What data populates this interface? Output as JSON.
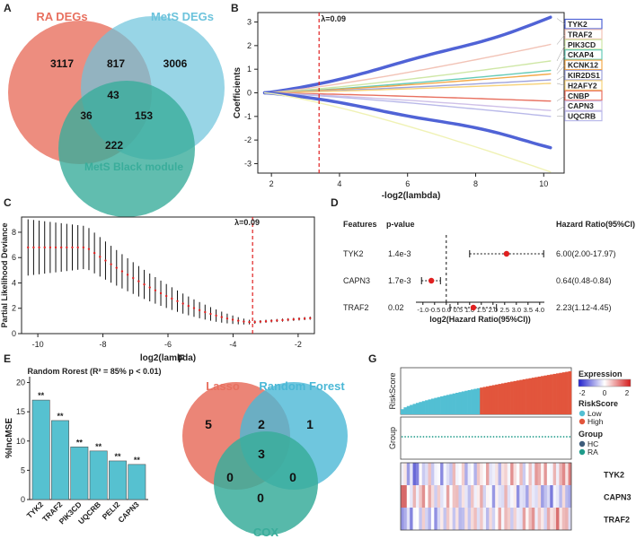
{
  "panels": {
    "A": {
      "letter": "A",
      "chart_data": {
        "type": "venn",
        "sets": [
          "RA DEGs",
          "MetS DEGs",
          "MetS Black module"
        ],
        "colors": [
          "#e8705f",
          "#6cc3dc",
          "#3aad9b"
        ],
        "regions": {
          "A_only": "3117",
          "B_only": "3006",
          "C_only": "222",
          "AB": "817",
          "AC": "36",
          "BC": "153",
          "ABC": "43"
        }
      }
    },
    "B": {
      "letter": "B",
      "chart_data": {
        "type": "line",
        "title": "",
        "xlabel": "-log2(lambda)",
        "ylabel": "Coefficients",
        "xlim": [
          1.6,
          10.6
        ],
        "ylim": [
          -3.4,
          3.4
        ],
        "xticks": [
          "2",
          "4",
          "6",
          "8",
          "10"
        ],
        "yticks": [
          "-3",
          "-2",
          "-1",
          "0",
          "1",
          "2",
          "3"
        ],
        "lambda_label": "λ=0.09",
        "lambda_x": 3.4,
        "series": [
          {
            "name": "TYK2",
            "color": "#5063d6",
            "width": 3.5,
            "end": 3.15
          },
          {
            "name": "TRAF2",
            "color": "#f2c3b6",
            "width": 1.4,
            "end": 2.05
          },
          {
            "name": "PIK3CD",
            "color": "#cfe7a6",
            "width": 1.4,
            "end": 1.35
          },
          {
            "name": "CKAP4",
            "color": "#66cbb7",
            "width": 1.4,
            "end": 0.95
          },
          {
            "name": "KCNK12",
            "color": "#f4a94b",
            "width": 1.4,
            "end": 0.8
          },
          {
            "name": "KIR2DS1",
            "color": "#9ea3dc",
            "width": 1.4,
            "end": 0.55
          },
          {
            "name": "H2AFY2",
            "color": "#f7d37a",
            "width": 1.4,
            "end": 0.4
          },
          {
            "name": "CNBP",
            "color": "#e8705f",
            "width": 1.4,
            "end": -0.35
          },
          {
            "name": "CAPN3",
            "color": "#cfc0e8",
            "width": 1.4,
            "end": -0.75
          },
          {
            "name": "UQCRB",
            "color": "#b9b9e9",
            "width": 1.4,
            "end": -1.0
          },
          {
            "name": "",
            "color": "#5063d6",
            "width": 3.5,
            "end": -2.25
          },
          {
            "name": "",
            "color": "#f0f2b5",
            "width": 1.4,
            "end": -3.35
          }
        ]
      }
    },
    "C": {
      "letter": "C",
      "chart_data": {
        "type": "scatter",
        "xlabel": "log2(lambda)",
        "ylabel": "Partial Likelihood Deviance",
        "xlim": [
          -10.5,
          -1.5
        ],
        "ylim": [
          0,
          9.2
        ],
        "xticks": [
          "-10",
          "-8",
          "-6",
          "-4",
          "-2"
        ],
        "yticks": [
          "0",
          "2",
          "4",
          "6",
          "8"
        ],
        "lambda_label": "λ=0.09",
        "lambda_x": -3.4,
        "curve": {
          "plateau": 6.8,
          "min": 0.9,
          "errors_high": 2.1
        }
      }
    },
    "D": {
      "letter": "D",
      "chart_data": {
        "type": "forest",
        "headers": [
          "Features",
          "p-value",
          "Hazard Ratio(95%CI)"
        ],
        "xlabel": "log2(Hazard Ratio(95%CI))",
        "xlim": [
          -1.3,
          4.2
        ],
        "xticks": [
          "-1.0",
          "-0.5",
          "0.0",
          "0.5",
          "1.0",
          "1.5",
          "2.0",
          "2.5",
          "3.0",
          "3.5",
          "4.0"
        ],
        "rows": [
          {
            "feature": "TYK2",
            "pvalue": "1.4e-3",
            "hr": "6.00(2.00-17.97)",
            "est": 2.58,
            "lo": 1.0,
            "hi": 4.17
          },
          {
            "feature": "CAPN3",
            "pvalue": "1.7e-3",
            "hr": "0.64(0.48-0.84)",
            "est": -0.64,
            "lo": -1.06,
            "hi": -0.25
          },
          {
            "feature": "TRAF2",
            "pvalue": "0.02",
            "hr": "2.23(1.12-4.45)",
            "est": 1.16,
            "lo": 0.16,
            "hi": 2.15
          }
        ]
      }
    },
    "E": {
      "letter": "E",
      "chart_data": {
        "type": "bar",
        "title": "Random Rorest (R² = 85% p < 0.01)",
        "ylabel": "%IncMSE",
        "categories": [
          "TYK2",
          "TRAF2",
          "PIK3CD",
          "UQCRB",
          "PELI2",
          "CAPN3"
        ],
        "values": [
          17.0,
          13.5,
          9.0,
          8.3,
          6.6,
          6.0
        ],
        "labels": [
          "**",
          "**",
          "**",
          "**",
          "**",
          "**"
        ],
        "ylim": [
          0,
          21
        ],
        "yticks": [
          "0",
          "5",
          "10",
          "15",
          "20"
        ],
        "color": "#56c1d0"
      }
    },
    "F": {
      "letter": "F",
      "chart_data": {
        "type": "venn",
        "sets": [
          "Lasso",
          "Random Forest",
          "COX"
        ],
        "colors": [
          "#e8705f",
          "#4bb8d6",
          "#3aad9b"
        ],
        "regions": {
          "A_only": "5",
          "B_only": "1",
          "C_only": "0",
          "AB": "2",
          "AC": "0",
          "BC": "0",
          "ABC": "3"
        }
      }
    },
    "G": {
      "letter": "G",
      "chart_data": {
        "type": "heatmap",
        "row_labels": [
          "TYK2",
          "CAPN3",
          "TRAF2"
        ],
        "riskscore_label": "RiskScore",
        "group_label": "Group",
        "legend": {
          "expression_title": "Expression",
          "expression_ticks": [
            "-2",
            "0",
            "2"
          ],
          "riskscore_title": "RiskScore",
          "riskscore_items": [
            "Low",
            "High"
          ],
          "group_title": "Group",
          "group_items": [
            "HC",
            "RA"
          ]
        },
        "colors": {
          "low": "#52bfd3",
          "high": "#e2553c",
          "hc": "#3e5c7a",
          "ra": "#1f9b8a",
          "cold": "#2222cc",
          "hot": "#d41b1b"
        },
        "n_samples": 56,
        "n_low": 26
      }
    }
  }
}
